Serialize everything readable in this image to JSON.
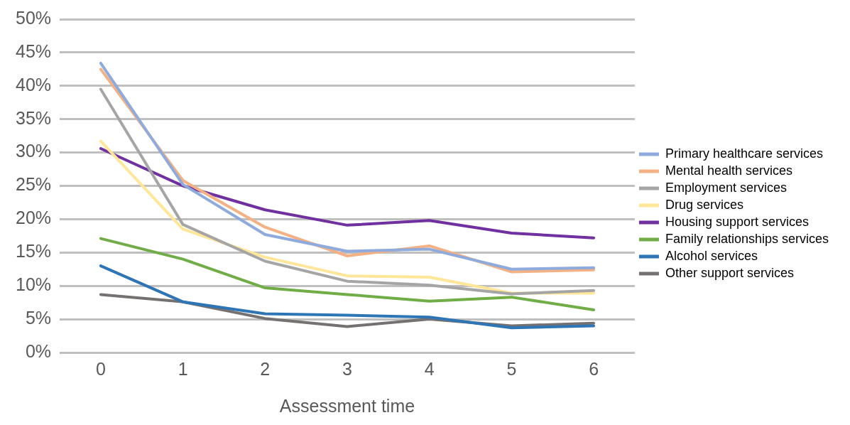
{
  "chart_data": {
    "type": "line",
    "xlabel": "Assessment time",
    "categories": [
      "0",
      "1",
      "2",
      "3",
      "4",
      "5",
      "6"
    ],
    "series": [
      {
        "name": "Primary healthcare services",
        "color": "#8faadc",
        "values": [
          43.4,
          25.2,
          17.7,
          15.2,
          15.5,
          12.5,
          12.7
        ]
      },
      {
        "name": "Mental health services",
        "color": "#f4b183",
        "values": [
          42.5,
          25.8,
          18.8,
          14.5,
          16.0,
          12.1,
          12.4
        ]
      },
      {
        "name": "Employment services",
        "color": "#a5a5a5",
        "values": [
          39.5,
          19.2,
          13.7,
          10.7,
          10.1,
          8.8,
          9.3
        ]
      },
      {
        "name": "Drug services",
        "color": "#ffe699",
        "values": [
          31.7,
          18.5,
          14.3,
          11.5,
          11.3,
          8.9,
          8.9
        ]
      },
      {
        "name": "Housing support services",
        "color": "#7030a0",
        "values": [
          30.6,
          25.0,
          21.4,
          19.1,
          19.8,
          17.9,
          17.2
        ]
      },
      {
        "name": "Family relationships services",
        "color": "#70ad47",
        "values": [
          17.1,
          14.0,
          9.7,
          8.7,
          7.7,
          8.3,
          6.4
        ]
      },
      {
        "name": "Alcohol services",
        "color": "#2e75b6",
        "values": [
          13.0,
          7.6,
          5.8,
          5.6,
          5.3,
          3.7,
          4.0
        ]
      },
      {
        "name": "Other support services",
        "color": "#767171",
        "values": [
          8.7,
          7.6,
          5.1,
          3.9,
          5.0,
          4.0,
          4.4
        ]
      }
    ],
    "ylim": [
      0,
      50
    ],
    "yticks": [
      {
        "value": 0,
        "label": "0%"
      },
      {
        "value": 5,
        "label": "5%"
      },
      {
        "value": 10,
        "label": "10%"
      },
      {
        "value": 15,
        "label": "15%"
      },
      {
        "value": 20,
        "label": "20%"
      },
      {
        "value": 25,
        "label": "25%"
      },
      {
        "value": 30,
        "label": "30%"
      },
      {
        "value": 35,
        "label": "35%"
      },
      {
        "value": 40,
        "label": "40%"
      },
      {
        "value": 45,
        "label": "45%"
      },
      {
        "value": 50,
        "label": "50%"
      }
    ],
    "grid": "y",
    "legend": "right",
    "marker": "none",
    "line_style": "solid"
  }
}
